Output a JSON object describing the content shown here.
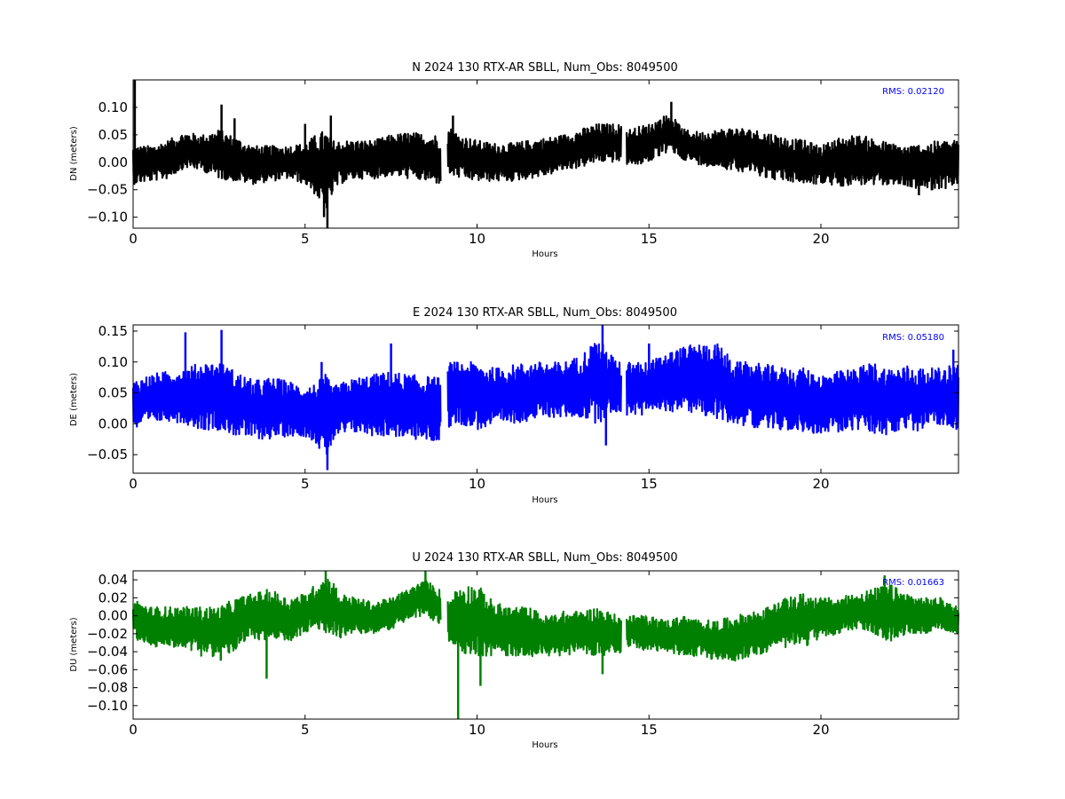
{
  "figure": {
    "background": "#ffffff"
  },
  "chart_data": [
    {
      "type": "line",
      "title": "N 2024 130 RTX-AR  SBLL, Num_Obs: 8049500",
      "xlabel": "Hours",
      "ylabel": "DN (meters)",
      "xlim": [
        0,
        24
      ],
      "ylim": [
        -0.12,
        0.15
      ],
      "xticks": [
        0,
        5,
        10,
        15,
        20
      ],
      "xtick_labels": [
        "0",
        "5",
        "10",
        "15",
        "20"
      ],
      "yticks": [
        -0.1,
        -0.05,
        0.0,
        0.05,
        0.1
      ],
      "ytick_labels": [
        "−0.10",
        "−0.05",
        "0.00",
        "0.05",
        "0.10"
      ],
      "annotation": "RMS:  0.02120",
      "annotation_color": "#0000ff",
      "series": [
        {
          "color": "#000000",
          "gaps": [
            [
              8.95,
              9.15
            ],
            [
              14.2,
              14.35
            ]
          ],
          "envelope": {
            "hours": [
              0,
              0.5,
              1,
              1.5,
              2,
              2.5,
              3,
              3.5,
              4,
              4.5,
              5,
              5.3,
              5.6,
              5.8,
              6,
              6.5,
              7,
              7.5,
              8,
              8.9,
              9.2,
              9.5,
              10,
              10.5,
              11,
              11.5,
              12,
              12.5,
              13,
              13.5,
              14.1,
              14.4,
              15,
              15.6,
              16,
              16.5,
              17,
              17.5,
              18,
              18.5,
              19,
              19.5,
              20,
              20.5,
              21,
              21.5,
              22,
              22.5,
              23,
              23.5,
              24
            ],
            "upper": [
              0.03,
              0.03,
              0.04,
              0.055,
              0.05,
              0.06,
              0.045,
              0.03,
              0.03,
              0.03,
              0.035,
              0.05,
              0.06,
              0.04,
              0.04,
              0.04,
              0.04,
              0.05,
              0.055,
              0.05,
              0.065,
              0.05,
              0.04,
              0.035,
              0.035,
              0.04,
              0.045,
              0.05,
              0.06,
              0.07,
              0.07,
              0.06,
              0.07,
              0.09,
              0.06,
              0.055,
              0.06,
              0.065,
              0.06,
              0.055,
              0.045,
              0.04,
              0.03,
              0.045,
              0.05,
              0.045,
              0.035,
              0.03,
              0.035,
              0.04,
              0.04
            ],
            "lower": [
              -0.04,
              -0.035,
              -0.03,
              -0.01,
              -0.015,
              -0.03,
              -0.035,
              -0.04,
              -0.035,
              -0.03,
              -0.04,
              -0.06,
              -0.09,
              -0.06,
              -0.04,
              -0.03,
              -0.03,
              -0.025,
              -0.03,
              -0.04,
              -0.025,
              -0.03,
              -0.035,
              -0.035,
              -0.035,
              -0.03,
              -0.025,
              -0.015,
              -0.01,
              0.0,
              0.0,
              -0.01,
              0.0,
              0.02,
              0.005,
              -0.005,
              -0.01,
              -0.015,
              -0.02,
              -0.03,
              -0.035,
              -0.04,
              -0.04,
              -0.045,
              -0.04,
              -0.045,
              -0.04,
              -0.045,
              -0.05,
              -0.05,
              -0.04
            ]
          },
          "spikes": [
            {
              "hour": 0.05,
              "value": 0.15
            },
            {
              "hour": 2.57,
              "value": 0.105
            },
            {
              "hour": 2.95,
              "value": 0.08
            },
            {
              "hour": 5.0,
              "value": 0.07
            },
            {
              "hour": 5.65,
              "value": -0.12
            },
            {
              "hour": 5.75,
              "value": 0.085
            },
            {
              "hour": 5.55,
              "value": -0.1
            },
            {
              "hour": 9.3,
              "value": 0.085
            },
            {
              "hour": 15.65,
              "value": 0.11
            },
            {
              "hour": 22.85,
              "value": -0.06
            }
          ]
        }
      ]
    },
    {
      "type": "line",
      "title": "E 2024 130 RTX-AR  SBLL, Num_Obs: 8049500",
      "xlabel": "Hours",
      "ylabel": "DE (meters)",
      "xlim": [
        0,
        24
      ],
      "ylim": [
        -0.08,
        0.16
      ],
      "xticks": [
        0,
        5,
        10,
        15,
        20
      ],
      "xtick_labels": [
        "0",
        "5",
        "10",
        "15",
        "20"
      ],
      "yticks": [
        -0.05,
        0.0,
        0.05,
        0.1,
        0.15
      ],
      "ytick_labels": [
        "−0.05",
        "0.00",
        "0.05",
        "0.10",
        "0.15"
      ],
      "annotation": "RMS:  0.05180",
      "annotation_color": "#0000ff",
      "series": [
        {
          "color": "#0000ff",
          "gaps": [
            [
              8.95,
              9.15
            ],
            [
              14.2,
              14.35
            ]
          ],
          "envelope": {
            "hours": [
              0,
              0.5,
              1,
              1.5,
              2,
              2.5,
              3,
              3.5,
              4,
              4.5,
              5,
              5.3,
              5.6,
              5.8,
              6,
              6.5,
              7,
              7.5,
              8,
              8.9,
              9.2,
              9.5,
              10,
              10.5,
              11,
              11.5,
              12,
              12.5,
              13,
              13.5,
              14.1,
              14.4,
              15,
              15.5,
              16,
              16.5,
              17,
              17.5,
              18,
              18.5,
              19,
              19.5,
              20,
              20.5,
              21,
              21.5,
              22,
              22.5,
              23,
              23.5,
              24
            ],
            "upper": [
              0.07,
              0.08,
              0.085,
              0.09,
              0.1,
              0.1,
              0.085,
              0.07,
              0.075,
              0.07,
              0.06,
              0.065,
              0.08,
              0.06,
              0.065,
              0.075,
              0.08,
              0.085,
              0.08,
              0.075,
              0.1,
              0.1,
              0.1,
              0.09,
              0.095,
              0.1,
              0.1,
              0.1,
              0.11,
              0.14,
              0.1,
              0.1,
              0.1,
              0.115,
              0.125,
              0.13,
              0.13,
              0.1,
              0.1,
              0.095,
              0.09,
              0.09,
              0.08,
              0.085,
              0.09,
              0.1,
              0.09,
              0.095,
              0.09,
              0.09,
              0.1
            ],
            "lower": [
              -0.01,
              0.0,
              0.005,
              0.0,
              -0.01,
              -0.01,
              -0.02,
              -0.025,
              -0.025,
              -0.02,
              -0.02,
              -0.03,
              -0.06,
              -0.03,
              -0.02,
              -0.015,
              -0.02,
              -0.02,
              -0.025,
              -0.03,
              -0.005,
              0.0,
              -0.01,
              -0.005,
              0.0,
              0.005,
              0.01,
              0.01,
              0.01,
              0.0,
              0.02,
              0.01,
              0.015,
              0.02,
              0.02,
              0.015,
              0.005,
              0.0,
              -0.005,
              -0.01,
              -0.01,
              -0.015,
              -0.015,
              -0.015,
              -0.01,
              -0.015,
              -0.02,
              -0.015,
              -0.01,
              0.0,
              -0.01
            ]
          },
          "spikes": [
            {
              "hour": 1.52,
              "value": 0.148
            },
            {
              "hour": 2.57,
              "value": 0.152
            },
            {
              "hour": 5.65,
              "value": -0.075
            },
            {
              "hour": 5.48,
              "value": 0.1
            },
            {
              "hour": 7.5,
              "value": 0.13
            },
            {
              "hour": 13.65,
              "value": 0.16
            },
            {
              "hour": 13.75,
              "value": -0.035
            },
            {
              "hour": 15.0,
              "value": 0.13
            },
            {
              "hour": 23.85,
              "value": 0.12
            }
          ]
        }
      ]
    },
    {
      "type": "line",
      "title": "U 2024 130 RTX-AR  SBLL, Num_Obs: 8049500",
      "xlabel": "Hours",
      "ylabel": "DU (meters)",
      "xlim": [
        0,
        24
      ],
      "ylim": [
        -0.115,
        0.05
      ],
      "xticks": [
        0,
        5,
        10,
        15,
        20
      ],
      "xtick_labels": [
        "0",
        "5",
        "10",
        "15",
        "20"
      ],
      "yticks": [
        -0.1,
        -0.08,
        -0.06,
        -0.04,
        -0.02,
        0.0,
        0.02,
        0.04
      ],
      "ytick_labels": [
        "−0.10",
        "−0.08",
        "−0.06",
        "−0.04",
        "−0.02",
        "0.00",
        "0.02",
        "0.04"
      ],
      "annotation": "RMS:  0.01663",
      "annotation_color": "#0000ff",
      "series": [
        {
          "color": "#008000",
          "gaps": [
            [
              8.95,
              9.15
            ],
            [
              14.2,
              14.35
            ]
          ],
          "envelope": {
            "hours": [
              0,
              0.5,
              1,
              1.5,
              2,
              2.5,
              3,
              3.5,
              4,
              4.5,
              5,
              5.3,
              5.6,
              5.8,
              6,
              6.5,
              7,
              7.5,
              8,
              8.5,
              8.9,
              9.2,
              9.5,
              10,
              10.5,
              11,
              11.5,
              12,
              12.5,
              13,
              13.5,
              14.1,
              14.4,
              15,
              15.5,
              16,
              16.5,
              17,
              17.5,
              18,
              18.5,
              19,
              19.5,
              20,
              20.5,
              21,
              21.5,
              22,
              22.5,
              23,
              23.5,
              24
            ],
            "upper": [
              0.02,
              0.01,
              0.01,
              0.01,
              0.01,
              0.01,
              0.02,
              0.025,
              0.03,
              0.02,
              0.025,
              0.035,
              0.045,
              0.04,
              0.025,
              0.02,
              0.015,
              0.02,
              0.03,
              0.04,
              0.03,
              0.02,
              0.035,
              0.035,
              0.015,
              0.01,
              0.01,
              0.0,
              0.005,
              0.005,
              0.01,
              0.0,
              0.0,
              0.0,
              -0.005,
              0.0,
              -0.005,
              -0.005,
              0.0,
              0.005,
              0.01,
              0.02,
              0.025,
              0.02,
              0.02,
              0.025,
              0.03,
              0.035,
              0.025,
              0.02,
              0.02,
              0.01
            ],
            "lower": [
              -0.025,
              -0.035,
              -0.035,
              -0.035,
              -0.045,
              -0.045,
              -0.04,
              -0.025,
              -0.03,
              -0.03,
              -0.02,
              -0.015,
              -0.02,
              -0.02,
              -0.025,
              -0.02,
              -0.02,
              -0.015,
              -0.005,
              0.0,
              -0.01,
              -0.03,
              -0.04,
              -0.045,
              -0.045,
              -0.045,
              -0.045,
              -0.045,
              -0.045,
              -0.04,
              -0.045,
              -0.045,
              -0.035,
              -0.04,
              -0.04,
              -0.045,
              -0.045,
              -0.05,
              -0.05,
              -0.045,
              -0.04,
              -0.035,
              -0.035,
              -0.025,
              -0.02,
              -0.015,
              -0.02,
              -0.03,
              -0.02,
              -0.02,
              -0.015,
              -0.02
            ]
          },
          "spikes": [
            {
              "hour": 2.55,
              "value": -0.05
            },
            {
              "hour": 3.88,
              "value": -0.07
            },
            {
              "hour": 5.6,
              "value": 0.05
            },
            {
              "hour": 8.5,
              "value": 0.05
            },
            {
              "hour": 9.45,
              "value": -0.115
            },
            {
              "hour": 10.1,
              "value": -0.078
            },
            {
              "hour": 13.65,
              "value": -0.065
            },
            {
              "hour": 21.85,
              "value": 0.045
            }
          ]
        }
      ]
    }
  ]
}
